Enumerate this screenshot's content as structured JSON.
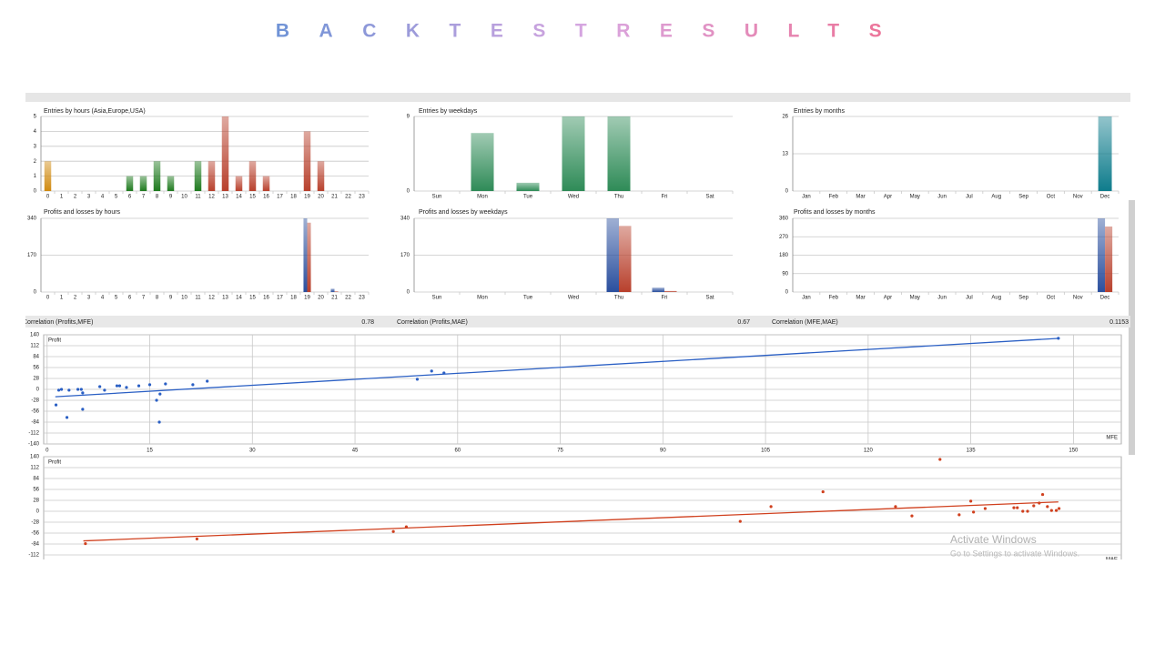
{
  "title": "BACKTESTRESULTS",
  "chart_data": [
    {
      "type": "bar",
      "title": "Entries by hours (Asia,Europe,USA)",
      "categories": [
        "0",
        "1",
        "2",
        "3",
        "4",
        "5",
        "6",
        "7",
        "8",
        "9",
        "10",
        "11",
        "12",
        "13",
        "14",
        "15",
        "16",
        "17",
        "18",
        "19",
        "20",
        "21",
        "22",
        "23"
      ],
      "values": [
        2,
        0,
        0,
        0,
        0,
        0,
        1,
        1,
        2,
        1,
        0,
        2,
        2,
        5,
        1,
        2,
        1,
        0,
        0,
        4,
        2,
        0,
        0,
        0
      ],
      "colors": [
        "#d08a10",
        "#d08a10",
        "#d08a10",
        "#d08a10",
        "#d08a10",
        "#d08a10",
        "#1e7a1e",
        "#1e7a1e",
        "#1e7a1e",
        "#1e7a1e",
        "#1e7a1e",
        "#1e7a1e",
        "#b8402c",
        "#b8402c",
        "#b8402c",
        "#b8402c",
        "#b8402c",
        "#b8402c",
        "#b8402c",
        "#b8402c",
        "#b8402c",
        "#b8402c",
        "#b8402c",
        "#b8402c"
      ],
      "ylim": [
        0,
        5
      ],
      "yticks": [
        0,
        1,
        2,
        3,
        4,
        5
      ],
      "grid": true
    },
    {
      "type": "bar",
      "title": "Entries by weekdays",
      "categories": [
        "Sun",
        "Mon",
        "Tue",
        "Wed",
        "Thu",
        "Fri",
        "Sat"
      ],
      "values": [
        0,
        7,
        1,
        9,
        9,
        0,
        0
      ],
      "colors": [
        "#2e8b57",
        "#2e8b57",
        "#2e8b57",
        "#2e8b57",
        "#2e8b57",
        "#2e8b57",
        "#2e8b57"
      ],
      "ylim": [
        0,
        9
      ],
      "yticks": [
        0,
        9
      ],
      "grid": true
    },
    {
      "type": "bar",
      "title": "Entries by months",
      "categories": [
        "Jan",
        "Feb",
        "Mar",
        "Apr",
        "May",
        "Jun",
        "Jul",
        "Aug",
        "Sep",
        "Oct",
        "Nov",
        "Dec"
      ],
      "values": [
        0,
        0,
        0,
        0,
        0,
        0,
        0,
        0,
        0,
        0,
        0,
        26
      ],
      "colors": [
        "#0e7c8c",
        "#0e7c8c",
        "#0e7c8c",
        "#0e7c8c",
        "#0e7c8c",
        "#0e7c8c",
        "#0e7c8c",
        "#0e7c8c",
        "#0e7c8c",
        "#0e7c8c",
        "#0e7c8c",
        "#0e7c8c"
      ],
      "ylim": [
        0,
        26
      ],
      "yticks": [
        0,
        13,
        26
      ],
      "grid": true
    },
    {
      "type": "bar",
      "title": "Profits and losses by hours",
      "categories": [
        "0",
        "1",
        "2",
        "3",
        "4",
        "5",
        "6",
        "7",
        "8",
        "9",
        "10",
        "11",
        "12",
        "13",
        "14",
        "15",
        "16",
        "17",
        "18",
        "19",
        "20",
        "21",
        "22",
        "23"
      ],
      "series": [
        {
          "color": "#2a4f9e",
          "values": [
            null,
            null,
            null,
            null,
            null,
            null,
            null,
            null,
            null,
            null,
            null,
            null,
            null,
            null,
            null,
            null,
            null,
            null,
            null,
            340,
            null,
            15,
            null,
            null
          ]
        },
        {
          "color": "#b8402c",
          "values": [
            null,
            null,
            null,
            null,
            null,
            null,
            null,
            null,
            null,
            null,
            null,
            null,
            null,
            null,
            null,
            null,
            null,
            null,
            null,
            320,
            null,
            3,
            null,
            null
          ]
        }
      ],
      "ylim": [
        0,
        340
      ],
      "yticks": [
        0,
        170,
        340
      ],
      "grid": true
    },
    {
      "type": "bar",
      "title": "Profits and losses by weekdays",
      "categories": [
        "Sun",
        "Mon",
        "Tue",
        "Wed",
        "Thu",
        "Fri",
        "Sat"
      ],
      "series": [
        {
          "color": "#2a4f9e",
          "values": [
            null,
            null,
            null,
            null,
            340,
            20,
            null
          ]
        },
        {
          "color": "#b8402c",
          "values": [
            null,
            null,
            null,
            null,
            305,
            5,
            null
          ]
        }
      ],
      "ylim": [
        0,
        340
      ],
      "yticks": [
        0,
        170,
        340
      ],
      "grid": true
    },
    {
      "type": "bar",
      "title": "Profits and losses by months",
      "categories": [
        "Jan",
        "Feb",
        "Mar",
        "Apr",
        "May",
        "Jun",
        "Jul",
        "Aug",
        "Sep",
        "Oct",
        "Nov",
        "Dec"
      ],
      "series": [
        {
          "color": "#2a4f9e",
          "values": [
            null,
            null,
            null,
            null,
            null,
            null,
            null,
            null,
            null,
            null,
            null,
            360
          ]
        },
        {
          "color": "#b8402c",
          "values": [
            null,
            null,
            null,
            null,
            null,
            null,
            null,
            null,
            null,
            null,
            null,
            320
          ]
        }
      ],
      "ylim": [
        0,
        360
      ],
      "yticks": [
        0,
        90,
        180,
        270,
        360
      ],
      "grid": true
    },
    {
      "type": "scatter",
      "ylabel": "Profit",
      "xlabel": "MFE",
      "color": "#2a5fc4",
      "x": [
        1.3,
        1.7,
        2.1,
        2.9,
        3.2,
        4.5,
        5,
        5.2,
        5.2,
        7.7,
        8.4,
        10.2,
        10.6,
        11.6,
        13.4,
        15,
        16,
        16.4,
        16.5,
        17.3,
        21.3,
        23.4,
        54.1,
        56.2,
        58,
        147.8
      ],
      "values": [
        -40,
        -2,
        0,
        -72,
        -2,
        0,
        0,
        -9,
        -51,
        7,
        -2,
        9,
        9,
        5,
        9,
        12,
        -28,
        -84,
        -12,
        14,
        12,
        21,
        26,
        47,
        42,
        131
      ],
      "trend": {
        "x": [
          1.2,
          148
        ],
        "y": [
          -19,
          131
        ]
      },
      "xlim": [
        -0.5,
        157
      ],
      "ylim": [
        -140,
        140
      ],
      "xticks": [
        0,
        15,
        30,
        45,
        60,
        75,
        90,
        105,
        120,
        135,
        150
      ],
      "yticks": [
        140,
        112,
        84,
        56,
        28,
        0,
        -28,
        -56,
        -84,
        -112,
        -140
      ],
      "grid": true
    },
    {
      "type": "scatter",
      "ylabel": "Profit",
      "xlabel": "MAE",
      "color": "#d0401e",
      "x": [
        5.6,
        21.9,
        50.6,
        52.5,
        101.3,
        105.8,
        113.4,
        130.5,
        124,
        126.4,
        133.3,
        135,
        135.4,
        137.1,
        141.3,
        141.8,
        142.6,
        143.3,
        144.2,
        145,
        145.5,
        146.2,
        146.8,
        147.5,
        147.9
      ],
      "values": [
        -83,
        -71,
        -52,
        -40,
        -26,
        12,
        50,
        133,
        12,
        -12,
        -9,
        26,
        -2,
        7,
        9,
        9,
        0,
        0,
        14,
        21,
        43,
        12,
        2,
        2,
        7
      ],
      "trend": {
        "x": [
          5.3,
          147.8
        ],
        "y": [
          -76,
          24
        ]
      },
      "xlim": [
        -0.5,
        157
      ],
      "ylim": [
        -140,
        140
      ],
      "yticks": [
        140,
        112,
        84,
        56,
        28,
        0,
        -28,
        -56,
        -84,
        -112
      ],
      "grid": true
    }
  ],
  "correlations": [
    {
      "label": "Correlation (Profits,MFE)",
      "value": 0.78
    },
    {
      "label": "Correlation (Profits,MAE)",
      "value": 0.67
    },
    {
      "label": "Correlation (MFE,MAE)",
      "value": 0.1153
    }
  ],
  "overlay": {
    "title": "Activate Windows",
    "subtitle": "Go to Settings to activate Windows."
  }
}
